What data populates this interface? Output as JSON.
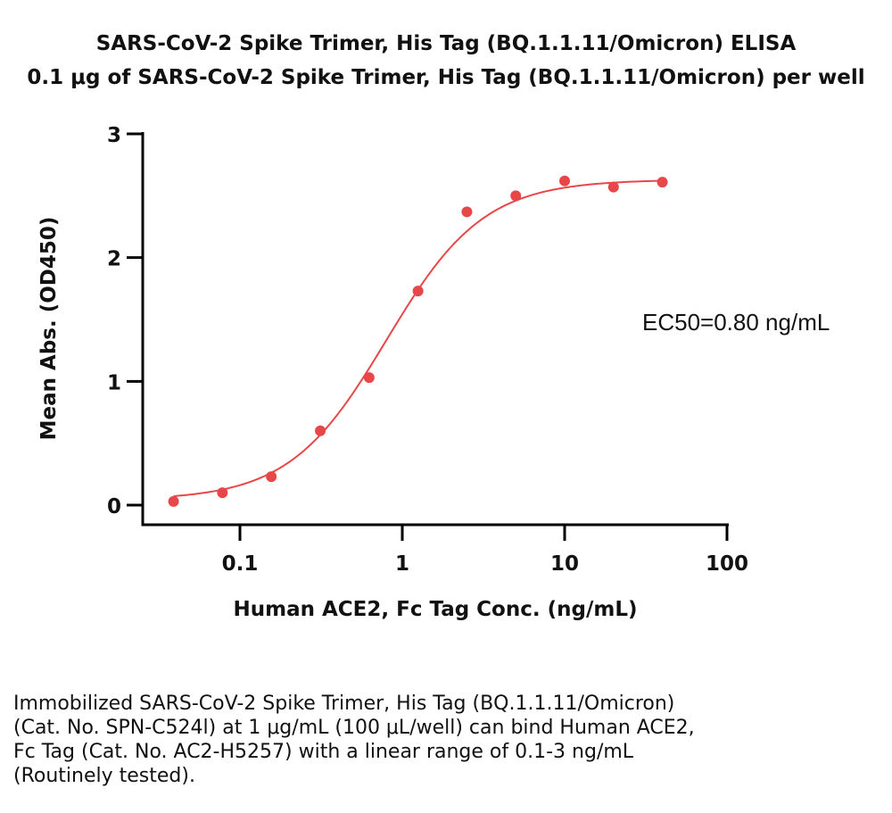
{
  "title": "SARS-CoV-2 Spike Trimer, His Tag (BQ.1.1.11/Omicron) ELISA",
  "subtitle": "0.1 μg of SARS-CoV-2 Spike Trimer, His Tag (BQ.1.1.11/Omicron) per well",
  "annotation": "EC50=0.80 ng/mL",
  "caption_lines": [
    "Immobilized SARS-CoV-2 Spike Trimer, His Tag (BQ.1.1.11/Omicron)",
    "(Cat. No. SPN-C524l) at 1 μg/mL (100 μL/well) can bind Human ACE2,",
    "Fc Tag (Cat. No. AC2-H5257) with a linear range of 0.1-3 ng/mL",
    "(Routinely tested)."
  ],
  "chart_data": {
    "type": "scatter",
    "title": "SARS-CoV-2 Spike Trimer, His Tag (BQ.1.1.11/Omicron) ELISA",
    "subtitle": "0.1 μg of SARS-CoV-2 Spike Trimer, His Tag (BQ.1.1.11/Omicron) per well",
    "xlabel": "Human ACE2, Fc Tag Conc. (ng/mL)",
    "ylabel": "Mean Abs. (OD450)",
    "x_scale": "log",
    "xlim": [
      0.03,
      100
    ],
    "ylim": [
      0,
      3
    ],
    "x_ticks": [
      0.1,
      1,
      10,
      100
    ],
    "x_tick_labels": [
      "0.1",
      "1",
      "10",
      "100"
    ],
    "y_ticks": [
      0,
      1,
      2,
      3
    ],
    "y_tick_labels": [
      "0",
      "1",
      "2",
      "3"
    ],
    "color": "#e8474a",
    "grid": false,
    "series": [
      {
        "x": [
          0.039,
          0.078,
          0.156,
          0.3125,
          0.625,
          1.25,
          2.5,
          5,
          10,
          20,
          40
        ],
        "y": [
          0.03,
          0.1,
          0.23,
          0.6,
          1.03,
          1.73,
          2.37,
          2.5,
          2.62,
          2.57,
          2.61
        ]
      }
    ],
    "fit": {
      "model": "4PL",
      "bottom": 0.04,
      "top": 2.63,
      "ec50": 0.8,
      "hill": 1.45
    }
  }
}
